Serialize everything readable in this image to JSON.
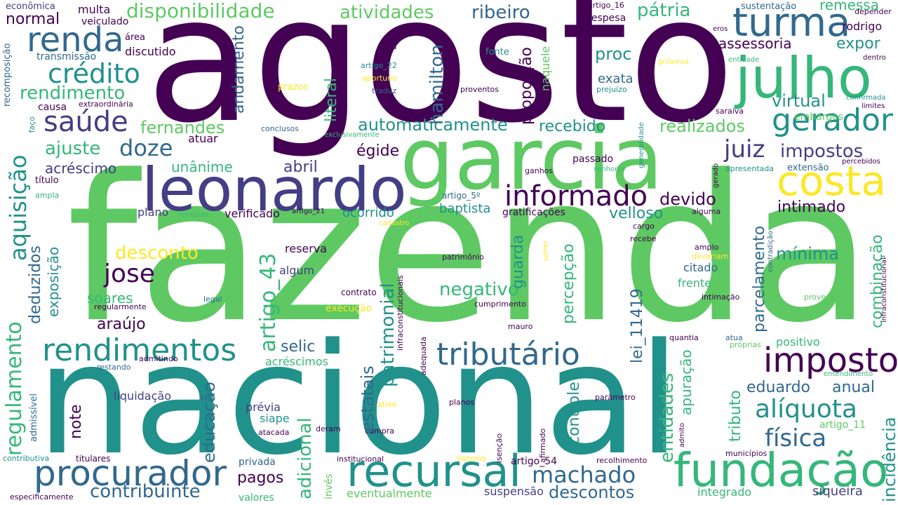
{
  "colors": {
    "background": "#ffffff",
    "dark_purple": "#440154",
    "indigo": "#433e85",
    "blue": "#31688e",
    "teal": "#21918c",
    "green": "#35b779",
    "light_green": "#5ec962",
    "lime": "#90d743",
    "yellow": "#fde725"
  },
  "words": {
    "agosto": "agosto",
    "fazenda": "fazenda",
    "nacional": "nacional",
    "garcia": "garcia",
    "leonardo": "leonardo",
    "turma": "turma",
    "julho": "julho",
    "costa": "costa",
    "gerador": "gerador",
    "fundacao": "fundação",
    "recursal": "recursal",
    "procurador": "procurador",
    "rendimentos": "rendimentos",
    "imposto": "imposto",
    "tributario": "tributário",
    "renda": "renda",
    "credito": "crédito",
    "saude": "saúde",
    "informado": "informado",
    "disponibilidade": "disponibilidade",
    "atividades": "atividades",
    "ribeiro": "ribeiro",
    "patria": "pátria",
    "sustentacao": "sustentação",
    "remessa": "remessa",
    "depender": "depender",
    "rodrigo": "rodrigo",
    "assessoria": "assessoria",
    "expor": "expor",
    "economica": "econômica",
    "multa": "multa",
    "normal": "normal",
    "veiculado": "veiculado",
    "area": "área",
    "transmissao": "transmissão",
    "discutido": "discutido",
    "rendimento": "rendimento",
    "causa": "causa",
    "extraordinaria": "extraordinária",
    "doze": "doze",
    "ajuste": "ajuste",
    "fernandes": "fernandes",
    "acrescimo": "acréscimo",
    "unanime": "unânime",
    "abril": "abril",
    "titulo": "título",
    "ampla": "ampla",
    "automaticamente": "automaticamente",
    "recebido": "recebido",
    "realizados": "realizados",
    "juiz": "juiz",
    "impostos": "impostos",
    "devido": "devido",
    "intimado": "intimado",
    "virtual": "virtual",
    "exata": "exata",
    "proc": "proc",
    "egide": "égide",
    "atuar": "atuar",
    "plano": "plano",
    "verificado": "verificado",
    "ocorrido": "ocorrido",
    "baptista": "baptista",
    "gratificacoes": "gratificações",
    "velloso": "velloso",
    "desconto": "desconto",
    "jose": "jose",
    "soares": "soares",
    "araujo": "araújo",
    "selic": "selic",
    "negativo": "negativo",
    "externa": "externa",
    "minima": "mínima",
    "frente": "frente",
    "citado": "citado",
    "reserva": "reserva",
    "algum": "algum",
    "contrato": "contrato",
    "execucao": "execução",
    "acrescimos": "acréscimos",
    "previa": "prévia",
    "siape": "siape",
    "liquidacao": "liquidação",
    "privada": "privada",
    "pagos": "pagos",
    "contribuinte": "contribuinte",
    "valores": "valores",
    "machado": "machado",
    "descontos": "descontos",
    "suspensao": "suspensão",
    "eventualmente": "eventualmente",
    "integrado": "integrado",
    "siqueira": "siqueira",
    "eduardo": "eduardo",
    "anual": "anual",
    "aliquota": "alíquota",
    "fisica": "física",
    "positivo": "positivo",
    "entendimento": "entendimento",
    "artigo_11": "artigo_11",
    "artigo_54": "artigo_54",
    "recolhimento": "recolhimento",
    "municipios": "municípios",
    "parametro": "parâmetro",
    "cumpra": "cumpra",
    "titulares": "titulares",
    "contributiva": "contributiva",
    "especificamente": "especificamente",
    "restando": "restando",
    "admitindo": "admitindo",
    "regularmente": "regularmente",
    "legal": "legal",
    "cumprimento": "cumprimento",
    "intimacao": "intimação",
    "provento": "provento",
    "mauro": "mauro",
    "quantia": "quantia",
    "atua": "atua",
    "proprias": "próprias",
    "planos": "planos",
    "ativo": "ativo",
    "deram": "deram",
    "atacada": "atacada",
    "sistema": "sistema",
    "institucional": "institucional",
    "patrimonio": "patrimônio",
    "amplo": "amplo",
    "deveriam": "deveriam",
    "recebe": "recebe",
    "cargo": "cargo",
    "alguma": "alguma",
    "artigo_21": "artigo_21",
    "recebida": "recebida",
    "artigo_5": "artigo_5º",
    "cadastro": "cadastro",
    "passado": "passado",
    "senhoria": "senhoria",
    "ganhos": "ganhos",
    "apresentada": "apresentada",
    "extensao": "extensão",
    "percebidos": "percebidos",
    "embargos": "embargos",
    "saraiva": "saraiva",
    "confirmada": "confirmada",
    "limites": "limites",
    "conclusos": "conclusos",
    "exclusivamente": "exclusivamente",
    "despesa": "despesa",
    "artigo_16": "artigo_16",
    "fonte": "fonte",
    "proventos": "proventos",
    "prejuizo": "prejuízo",
    "grifamos": "grifamos",
    "entidade": "entidade",
    "dentro": "dentro",
    "eros": "eros",
    "nega": "nega",
    "artigo_22": "artigo_22",
    "oportuno": "oportuno",
    "traduz": "traduz",
    "prazos": "prazos",
    "faco": "faço",
    "v_aquisicao": "aquisição",
    "v_regulamento": "regulamento",
    "v_deduzidos": "deduzidos",
    "v_exposicao": "exposição",
    "v_educacao": "educação",
    "v_adicional": "adicional",
    "v_note": "note",
    "v_artigo_43": "artigo_43",
    "v_estatais": "estatais",
    "v_patrimonial": "patrimonial",
    "v_literal": "literal",
    "v_andamento": "andamento",
    "v_hamilton": "hamilton",
    "v_proporcao": "proporção",
    "v_naquele": "naquele",
    "v_percepcao": "percepção",
    "v_guarda": "guarda",
    "v_lei_11419": "lei_11419",
    "v_controle": "controle",
    "v_entidades": "entidades",
    "v_apuracao": "apuração",
    "v_tributo": "tributo",
    "v_parcelamento": "parcelamento",
    "v_combinacao": "combinação",
    "v_incidencia": "incidência",
    "v_recomposicao": "recomposição",
    "v_admissivel": "admissível",
    "v_inves": "invés",
    "v_infraconstitucionais": "infraconstitucionais",
    "v_adequada": "adequada",
    "v_afirmado": "afirmado",
    "v_isencao": "isenção",
    "v_admito": "admito",
    "v_sofrer": "sofrer",
    "v_contradicao": "contradição",
    "v_infraconstitucional": "infraconstitucional",
    "v_generalidade": "generalidade",
    "v_gerado": "gerado"
  }
}
